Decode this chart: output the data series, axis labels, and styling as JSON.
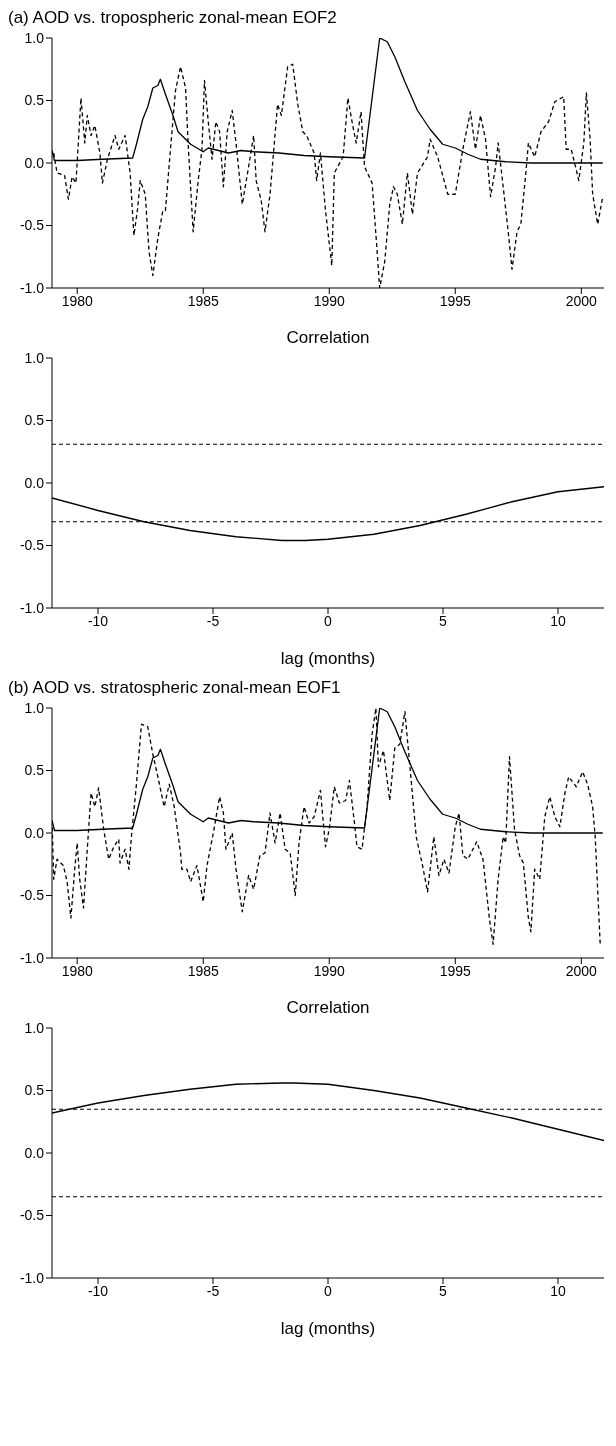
{
  "chart_data": [
    {
      "type": "line",
      "title": "(a) AOD vs. tropospheric zonal-mean EOF2",
      "xlim": [
        1979,
        2000.9
      ],
      "xticks": [
        1980,
        1985,
        1990,
        1995,
        2000
      ],
      "ylim": [
        -1,
        1
      ],
      "yticks": [
        {
          "value": -1,
          "label": "-1.0"
        },
        {
          "value": -0.5,
          "label": "-0.5"
        },
        {
          "value": 0,
          "label": "0.0"
        },
        {
          "value": 0.5,
          "label": "0.5"
        },
        {
          "value": 1,
          "label": "1.0"
        }
      ],
      "marker": "none",
      "series": [
        {
          "color": "#000000",
          "line_style": "solid",
          "x": [
            1979.0,
            1979.1,
            1980,
            1981,
            1982.2,
            1982.35,
            1982.6,
            1982.8,
            1983.0,
            1983.2,
            1983.3,
            1983.5,
            1983.8,
            1984.0,
            1984.5,
            1985.0,
            1985.2,
            1985.6,
            1986,
            1986.5,
            1987,
            1988,
            1989,
            1990,
            1991.4,
            1992.0,
            1992.3,
            1992.6,
            1993,
            1993.5,
            1994,
            1994.5,
            1995,
            1995.5,
            1996,
            1997,
            1998,
            2000.85
          ],
          "values": [
            0.1,
            0.02,
            0.02,
            0.03,
            0.04,
            0.15,
            0.35,
            0.45,
            0.6,
            0.62,
            0.67,
            0.55,
            0.38,
            0.25,
            0.15,
            0.09,
            0.12,
            0.1,
            0.08,
            0.1,
            0.09,
            0.08,
            0.06,
            0.05,
            0.04,
            1.0,
            0.97,
            0.85,
            0.65,
            0.42,
            0.27,
            0.15,
            0.12,
            0.07,
            0.03,
            0.01,
            0.0,
            0.0
          ]
        },
        {
          "color": "#000000",
          "line_style": "dashed",
          "x": [
            1979.07,
            1979.2,
            1979.5,
            1979.65,
            1979.8,
            1979.95,
            1980.15,
            1980.3,
            1980.4,
            1980.55,
            1980.7,
            1980.9,
            1981.0,
            1981.2,
            1981.5,
            1981.65,
            1981.9,
            1982.1,
            1982.25,
            1982.4,
            1982.5,
            1982.7,
            1982.85,
            1983.0,
            1983.2,
            1983.4,
            1983.5,
            1983.7,
            1983.9,
            1984.1,
            1984.3,
            1984.4,
            1984.6,
            1984.8,
            1984.95,
            1985.05,
            1985.2,
            1985.35,
            1985.5,
            1985.65,
            1985.8,
            1985.95,
            1986.15,
            1986.3,
            1986.55,
            1986.8,
            1987.0,
            1987.1,
            1987.3,
            1987.45,
            1987.65,
            1987.8,
            1987.95,
            1988.1,
            1988.35,
            1988.55,
            1988.75,
            1988.95,
            1989.1,
            1989.4,
            1989.5,
            1989.65,
            1989.85,
            1990.1,
            1990.2,
            1990.55,
            1990.74,
            1990.93,
            1991.07,
            1991.26,
            1991.4,
            1991.7,
            1991.9,
            1992.0,
            1992.2,
            1992.4,
            1992.55,
            1992.7,
            1992.9,
            1993.1,
            1993.3,
            1993.5,
            1993.9,
            1994.0,
            1994.3,
            1994.7,
            1995.0,
            1995.3,
            1995.6,
            1995.8,
            1996.0,
            1996.2,
            1996.4,
            1996.6,
            1996.7,
            1996.9,
            1997.1,
            1997.25,
            1997.45,
            1997.6,
            1997.8,
            1997.9,
            1998.15,
            1998.4,
            1998.7,
            1998.95,
            1999.3,
            1999.4,
            1999.6,
            1999.9,
            2000.1,
            2000.2,
            2000.35,
            2000.45,
            2000.65,
            2000.85
          ],
          "values": [
            0.08,
            -0.08,
            -0.1,
            -0.29,
            -0.11,
            -0.16,
            0.52,
            0.16,
            0.38,
            0.22,
            0.3,
            0.08,
            -0.16,
            0.03,
            0.22,
            0.11,
            0.22,
            -0.08,
            -0.58,
            -0.36,
            -0.14,
            -0.25,
            -0.71,
            -0.9,
            -0.6,
            -0.38,
            -0.38,
            0.11,
            0.58,
            0.77,
            0.6,
            0.16,
            -0.55,
            -0.14,
            0.11,
            0.66,
            0.33,
            0.03,
            0.33,
            0.25,
            -0.19,
            0.25,
            0.42,
            0.16,
            -0.33,
            -0.03,
            0.22,
            -0.14,
            -0.3,
            -0.55,
            -0.25,
            0.11,
            0.47,
            0.38,
            0.77,
            0.79,
            0.47,
            0.25,
            0.22,
            0.08,
            -0.14,
            0.08,
            -0.38,
            -0.82,
            -0.08,
            0.05,
            0.52,
            0.3,
            0.16,
            0.41,
            -0.03,
            -0.16,
            -0.71,
            -1.0,
            -0.79,
            -0.33,
            -0.19,
            -0.25,
            -0.49,
            -0.08,
            -0.41,
            -0.08,
            0.05,
            0.19,
            0.05,
            -0.25,
            -0.25,
            0.11,
            0.41,
            0.11,
            0.38,
            0.19,
            -0.27,
            -0.03,
            0.16,
            -0.19,
            -0.55,
            -0.85,
            -0.55,
            -0.49,
            -0.08,
            0.16,
            0.05,
            0.25,
            0.33,
            0.49,
            0.53,
            0.11,
            0.11,
            -0.14,
            0.16,
            0.56,
            0.19,
            -0.25,
            -0.49,
            -0.27
          ]
        }
      ]
    },
    {
      "type": "line",
      "title": "Correlation",
      "xlabel": "lag (months)",
      "xlim": [
        -12,
        12
      ],
      "xticks": [
        -10,
        -5,
        0,
        5,
        10
      ],
      "ylim": [
        -1,
        1
      ],
      "yticks": [
        {
          "value": -1,
          "label": "-1.0"
        },
        {
          "value": -0.5,
          "label": "-0.5"
        },
        {
          "value": 0,
          "label": "0.0"
        },
        {
          "value": 0.5,
          "label": "0.5"
        },
        {
          "value": 1,
          "label": "1.0"
        }
      ],
      "marker": "none",
      "series": [
        {
          "color": "#000000",
          "line_style": "solid",
          "x": [
            -12,
            -10,
            -8,
            -6,
            -4,
            -2,
            -1,
            0,
            2,
            4,
            6,
            8,
            10,
            12
          ],
          "values": [
            -0.12,
            -0.22,
            -0.31,
            -0.38,
            -0.43,
            -0.46,
            -0.46,
            -0.45,
            -0.41,
            -0.34,
            -0.25,
            -0.15,
            -0.07,
            -0.03
          ]
        }
      ],
      "ref_lines": [
        {
          "axis": "y",
          "value": 0.31,
          "color": "#000000",
          "line_style": "dashed"
        },
        {
          "axis": "y",
          "value": -0.31,
          "color": "#000000",
          "line_style": "dashed"
        }
      ]
    },
    {
      "type": "line",
      "title": "(b) AOD vs. stratospheric zonal-mean EOF1",
      "xlim": [
        1979,
        2000.9
      ],
      "xticks": [
        1980,
        1985,
        1990,
        1995,
        2000
      ],
      "ylim": [
        -1,
        1
      ],
      "yticks": [
        {
          "value": -1,
          "label": "-1.0"
        },
        {
          "value": -0.5,
          "label": "-0.5"
        },
        {
          "value": 0,
          "label": "0.0"
        },
        {
          "value": 0.5,
          "label": "0.5"
        },
        {
          "value": 1,
          "label": "1.0"
        }
      ],
      "marker": "none",
      "series": [
        {
          "color": "#000000",
          "line_style": "solid",
          "x": [
            1979.0,
            1979.1,
            1980,
            1981,
            1982.2,
            1982.35,
            1982.6,
            1982.8,
            1983.0,
            1983.2,
            1983.3,
            1983.5,
            1983.8,
            1984.0,
            1984.5,
            1985.0,
            1985.2,
            1985.6,
            1986,
            1986.5,
            1987,
            1988,
            1989,
            1990,
            1991.4,
            1992.0,
            1992.3,
            1992.6,
            1993,
            1993.5,
            1994,
            1994.5,
            1995,
            1995.5,
            1996,
            1997,
            1998,
            2000.85
          ],
          "values": [
            0.1,
            0.02,
            0.02,
            0.03,
            0.04,
            0.15,
            0.35,
            0.45,
            0.6,
            0.62,
            0.67,
            0.55,
            0.38,
            0.25,
            0.15,
            0.09,
            0.12,
            0.1,
            0.08,
            0.1,
            0.09,
            0.08,
            0.06,
            0.05,
            0.04,
            1.0,
            0.97,
            0.85,
            0.65,
            0.42,
            0.27,
            0.15,
            0.12,
            0.07,
            0.03,
            0.01,
            0.0,
            0.0
          ]
        },
        {
          "color": "#000000",
          "line_style": "dashed",
          "x": [
            1979.0,
            1979.07,
            1979.2,
            1979.45,
            1979.6,
            1979.75,
            1979.9,
            1980.0,
            1980.1,
            1980.25,
            1980.4,
            1980.55,
            1980.7,
            1980.85,
            1981.05,
            1981.25,
            1981.45,
            1981.65,
            1981.7,
            1981.9,
            1982.05,
            1982.15,
            1982.35,
            1982.55,
            1982.8,
            1983.0,
            1983.2,
            1983.45,
            1983.65,
            1983.85,
            1984.1,
            1984.15,
            1984.35,
            1984.5,
            1984.75,
            1985.0,
            1985.15,
            1985.4,
            1985.65,
            1985.8,
            1985.9,
            1986.15,
            1986.3,
            1986.55,
            1986.8,
            1987.0,
            1987.25,
            1987.45,
            1987.65,
            1987.85,
            1988.05,
            1988.25,
            1988.45,
            1988.65,
            1988.8,
            1989.0,
            1989.2,
            1989.4,
            1989.65,
            1989.85,
            1990.0,
            1990.2,
            1990.4,
            1990.65,
            1990.8,
            1991.0,
            1991.1,
            1991.3,
            1991.5,
            1991.7,
            1991.85,
            1991.95,
            1992.15,
            1992.4,
            1992.6,
            1992.8,
            1993.0,
            1993.25,
            1993.45,
            1993.7,
            1993.9,
            1994.15,
            1994.35,
            1994.55,
            1994.75,
            1995.0,
            1995.15,
            1995.3,
            1995.5,
            1995.85,
            1996.1,
            1996.35,
            1996.5,
            1996.7,
            1996.9,
            1997.0,
            1997.15,
            1997.35,
            1997.55,
            1997.7,
            1997.9,
            1998.0,
            1998.15,
            1998.35,
            1998.55,
            1998.75,
            1998.95,
            1999.15,
            1999.35,
            1999.5,
            1999.8,
            2000.05,
            2000.25,
            2000.45,
            2000.55,
            2000.75
          ],
          "values": [
            0.1,
            -0.37,
            -0.21,
            -0.26,
            -0.39,
            -0.68,
            -0.29,
            -0.08,
            -0.37,
            -0.6,
            -0.13,
            0.32,
            0.21,
            0.36,
            0.03,
            -0.21,
            -0.11,
            -0.05,
            -0.24,
            -0.13,
            -0.29,
            -0.03,
            0.39,
            0.87,
            0.85,
            0.63,
            0.45,
            0.21,
            0.39,
            0.21,
            -0.16,
            -0.29,
            -0.29,
            -0.39,
            -0.26,
            -0.55,
            -0.26,
            0.0,
            0.29,
            0.16,
            -0.13,
            0.0,
            -0.29,
            -0.63,
            -0.34,
            -0.45,
            -0.18,
            -0.16,
            0.16,
            -0.08,
            0.16,
            -0.13,
            -0.16,
            -0.5,
            -0.08,
            0.21,
            0.08,
            0.13,
            0.34,
            -0.11,
            0.03,
            0.37,
            0.24,
            0.26,
            0.42,
            0.08,
            -0.11,
            -0.13,
            0.21,
            0.79,
            1.0,
            0.53,
            0.66,
            0.26,
            0.68,
            0.71,
            0.97,
            0.42,
            -0.03,
            -0.26,
            -0.47,
            -0.03,
            -0.34,
            -0.21,
            -0.32,
            0.05,
            0.16,
            -0.18,
            -0.21,
            -0.07,
            -0.21,
            -0.68,
            -0.89,
            -0.37,
            -0.03,
            -0.08,
            0.61,
            0.03,
            -0.18,
            -0.24,
            -0.68,
            -0.79,
            -0.29,
            -0.37,
            0.13,
            0.29,
            0.13,
            0.05,
            0.32,
            0.45,
            0.37,
            0.49,
            0.39,
            0.21,
            -0.03,
            -0.89
          ]
        }
      ]
    },
    {
      "type": "line",
      "title": "Correlation",
      "xlabel": "lag (months)",
      "xlim": [
        -12,
        12
      ],
      "xticks": [
        -10,
        -5,
        0,
        5,
        10
      ],
      "ylim": [
        -1,
        1
      ],
      "yticks": [
        {
          "value": -1,
          "label": "-1.0"
        },
        {
          "value": -0.5,
          "label": "-0.5"
        },
        {
          "value": 0,
          "label": "0.0"
        },
        {
          "value": 0.5,
          "label": "0.5"
        },
        {
          "value": 1,
          "label": "1.0"
        }
      ],
      "marker": "none",
      "series": [
        {
          "color": "#000000",
          "line_style": "solid",
          "x": [
            -12,
            -10,
            -8,
            -6,
            -4,
            -2,
            -1.5,
            0,
            2,
            4,
            6,
            8,
            10,
            12
          ],
          "values": [
            0.32,
            0.4,
            0.46,
            0.51,
            0.55,
            0.56,
            0.56,
            0.55,
            0.5,
            0.44,
            0.36,
            0.28,
            0.19,
            0.1
          ]
        }
      ],
      "ref_lines": [
        {
          "axis": "y",
          "value": 0.35,
          "color": "#000000",
          "line_style": "dashed"
        },
        {
          "axis": "y",
          "value": -0.35,
          "color": "#000000",
          "line_style": "dashed"
        }
      ]
    }
  ]
}
